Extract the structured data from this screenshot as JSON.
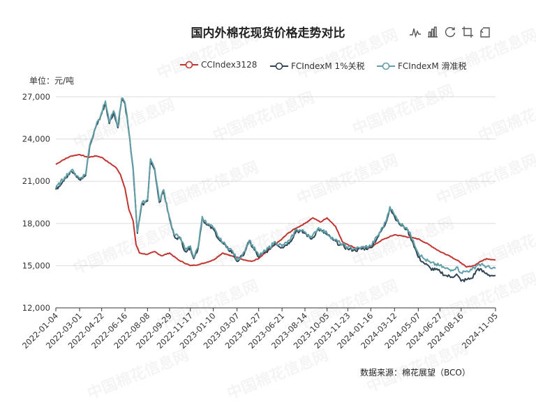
{
  "title": "国内外棉花现货价格走势对比",
  "unit_label": "单位：元/吨",
  "source": "数据来源：棉花展望（BCO）",
  "watermark": "中国棉花信息网",
  "toolbox": [
    "line-chart-icon",
    "bar-chart-icon",
    "restore-icon",
    "data-zoom-icon",
    "back-icon"
  ],
  "colors": {
    "cc": "#c23531",
    "m1": "#2f4554",
    "mv": "#61a0a8",
    "grid": "#dddddd",
    "axis": "#333333"
  },
  "chart_data": {
    "type": "line",
    "title": "国内外棉花现货价格走势对比",
    "ylabel": "单位：元/吨",
    "ylim": [
      12000,
      27000
    ],
    "yticks": [
      "12,000",
      "15,000",
      "18,000",
      "21,000",
      "24,000",
      "27,000"
    ],
    "ytick_values": [
      12000,
      15000,
      18000,
      21000,
      24000,
      27000
    ],
    "xlim": [
      "2022-01-04",
      "2024-11-05"
    ],
    "xticks": [
      "2022-01-04",
      "2022-03-01",
      "2022-04-22",
      "2022-06-16",
      "2022-08-08",
      "2022-09-29",
      "2022-11-17",
      "2023-01-10",
      "2023-03-07",
      "2023-04-27",
      "2023-06-21",
      "2023-08-14",
      "2023-10-05",
      "2023-11-23",
      "2024-01-16",
      "2024-03-12",
      "2024-05-07",
      "2024-06-27",
      "2024-08-16",
      "2024-11-05"
    ],
    "grid": true,
    "legend_position": "top-right",
    "series": [
      {
        "name": "CCIndex3128",
        "color": "#c23531",
        "points": [
          [
            "2022-01-04",
            22200
          ],
          [
            "2022-01-20",
            22500
          ],
          [
            "2022-02-10",
            22800
          ],
          [
            "2022-03-01",
            22900
          ],
          [
            "2022-03-20",
            22700
          ],
          [
            "2022-04-10",
            22800
          ],
          [
            "2022-04-22",
            22700
          ],
          [
            "2022-05-10",
            22300
          ],
          [
            "2022-05-25",
            22000
          ],
          [
            "2022-06-05",
            21500
          ],
          [
            "2022-06-16",
            20500
          ],
          [
            "2022-06-25",
            19000
          ],
          [
            "2022-07-05",
            18200
          ],
          [
            "2022-07-12",
            16500
          ],
          [
            "2022-07-20",
            15900
          ],
          [
            "2022-08-08",
            15800
          ],
          [
            "2022-08-25",
            16000
          ],
          [
            "2022-09-10",
            15700
          ],
          [
            "2022-09-29",
            15900
          ],
          [
            "2022-10-20",
            15400
          ],
          [
            "2022-11-17",
            15000
          ],
          [
            "2022-12-10",
            15100
          ],
          [
            "2023-01-10",
            15400
          ],
          [
            "2023-02-01",
            15900
          ],
          [
            "2023-02-20",
            15700
          ],
          [
            "2023-03-07",
            15600
          ],
          [
            "2023-03-25",
            15400
          ],
          [
            "2023-04-10",
            15300
          ],
          [
            "2023-04-27",
            15500
          ],
          [
            "2023-05-20",
            16100
          ],
          [
            "2023-06-21",
            16900
          ],
          [
            "2023-07-05",
            17300
          ],
          [
            "2023-07-20",
            17600
          ],
          [
            "2023-08-14",
            18000
          ],
          [
            "2023-09-01",
            18400
          ],
          [
            "2023-09-20",
            18100
          ],
          [
            "2023-10-05",
            18400
          ],
          [
            "2023-10-25",
            17800
          ],
          [
            "2023-11-10",
            16700
          ],
          [
            "2023-11-23",
            16500
          ],
          [
            "2023-12-15",
            16200
          ],
          [
            "2024-01-16",
            16300
          ],
          [
            "2024-02-10",
            16800
          ],
          [
            "2024-03-12",
            17200
          ],
          [
            "2024-04-01",
            17100
          ],
          [
            "2024-04-20",
            17000
          ],
          [
            "2024-05-07",
            16900
          ],
          [
            "2024-06-01",
            16500
          ],
          [
            "2024-06-27",
            16000
          ],
          [
            "2024-07-20",
            15700
          ],
          [
            "2024-08-16",
            15200
          ],
          [
            "2024-08-28",
            14900
          ],
          [
            "2024-09-15",
            15000
          ],
          [
            "2024-10-01",
            15300
          ],
          [
            "2024-10-15",
            15500
          ],
          [
            "2024-11-05",
            15400
          ]
        ]
      },
      {
        "name": "FCIndexM 1%关税",
        "color": "#2f4554",
        "points": [
          [
            "2022-01-04",
            20400
          ],
          [
            "2022-01-25",
            21200
          ],
          [
            "2022-02-10",
            21700
          ],
          [
            "2022-03-01",
            21100
          ],
          [
            "2022-03-15",
            21400
          ],
          [
            "2022-03-25",
            23500
          ],
          [
            "2022-04-10",
            25000
          ],
          [
            "2022-04-22",
            25800
          ],
          [
            "2022-05-01",
            26600
          ],
          [
            "2022-05-10",
            25100
          ],
          [
            "2022-05-20",
            25900
          ],
          [
            "2022-05-30",
            24800
          ],
          [
            "2022-06-08",
            26800
          ],
          [
            "2022-06-16",
            26500
          ],
          [
            "2022-06-25",
            24500
          ],
          [
            "2022-07-05",
            21900
          ],
          [
            "2022-07-15",
            17300
          ],
          [
            "2022-07-25",
            19300
          ],
          [
            "2022-08-08",
            19600
          ],
          [
            "2022-08-15",
            22500
          ],
          [
            "2022-08-25",
            21800
          ],
          [
            "2022-09-05",
            19500
          ],
          [
            "2022-09-15",
            20300
          ],
          [
            "2022-09-29",
            18300
          ],
          [
            "2022-10-10",
            17100
          ],
          [
            "2022-10-25",
            16900
          ],
          [
            "2022-11-05",
            16000
          ],
          [
            "2022-11-17",
            16300
          ],
          [
            "2022-11-25",
            15500
          ],
          [
            "2022-12-05",
            16200
          ],
          [
            "2022-12-15",
            18400
          ],
          [
            "2022-12-25",
            17900
          ],
          [
            "2023-01-10",
            17600
          ],
          [
            "2023-01-25",
            16800
          ],
          [
            "2023-02-10",
            16300
          ],
          [
            "2023-02-25",
            15900
          ],
          [
            "2023-03-07",
            15300
          ],
          [
            "2023-03-20",
            15700
          ],
          [
            "2023-04-05",
            16700
          ],
          [
            "2023-04-27",
            15600
          ],
          [
            "2023-05-15",
            16000
          ],
          [
            "2023-06-05",
            16600
          ],
          [
            "2023-06-21",
            16300
          ],
          [
            "2023-07-10",
            16700
          ],
          [
            "2023-07-25",
            17500
          ],
          [
            "2023-08-14",
            17300
          ],
          [
            "2023-08-30",
            16900
          ],
          [
            "2023-09-15",
            17600
          ],
          [
            "2023-10-05",
            17200
          ],
          [
            "2023-10-20",
            16800
          ],
          [
            "2023-11-05",
            16500
          ],
          [
            "2023-11-23",
            16200
          ],
          [
            "2023-12-10",
            16100
          ],
          [
            "2024-01-16",
            16300
          ],
          [
            "2024-02-01",
            17000
          ],
          [
            "2024-02-20",
            18000
          ],
          [
            "2024-03-01",
            19100
          ],
          [
            "2024-03-12",
            18500
          ],
          [
            "2024-03-25",
            17900
          ],
          [
            "2024-04-10",
            17600
          ],
          [
            "2024-04-25",
            16600
          ],
          [
            "2024-05-07",
            15600
          ],
          [
            "2024-05-20",
            15200
          ],
          [
            "2024-06-05",
            14800
          ],
          [
            "2024-06-27",
            14600
          ],
          [
            "2024-07-10",
            14300
          ],
          [
            "2024-07-25",
            14200
          ],
          [
            "2024-08-05",
            14400
          ],
          [
            "2024-08-16",
            13900
          ],
          [
            "2024-08-28",
            14000
          ],
          [
            "2024-09-10",
            14100
          ],
          [
            "2024-09-25",
            14800
          ],
          [
            "2024-10-10",
            14500
          ],
          [
            "2024-10-25",
            14300
          ],
          [
            "2024-11-05",
            14300
          ]
        ]
      },
      {
        "name": "FCIndexM 滑准税",
        "color": "#61a0a8",
        "points": [
          [
            "2022-01-04",
            20500
          ],
          [
            "2022-01-25",
            21300
          ],
          [
            "2022-02-10",
            21800
          ],
          [
            "2022-03-01",
            21200
          ],
          [
            "2022-03-15",
            21500
          ],
          [
            "2022-03-25",
            23600
          ],
          [
            "2022-04-10",
            25100
          ],
          [
            "2022-04-22",
            25900
          ],
          [
            "2022-05-01",
            26700
          ],
          [
            "2022-05-10",
            25200
          ],
          [
            "2022-05-20",
            26000
          ],
          [
            "2022-05-30",
            24900
          ],
          [
            "2022-06-08",
            26900
          ],
          [
            "2022-06-16",
            26600
          ],
          [
            "2022-06-25",
            24600
          ],
          [
            "2022-07-05",
            22000
          ],
          [
            "2022-07-15",
            17400
          ],
          [
            "2022-07-25",
            19400
          ],
          [
            "2022-08-08",
            19700
          ],
          [
            "2022-08-15",
            22600
          ],
          [
            "2022-08-25",
            21900
          ],
          [
            "2022-09-05",
            19600
          ],
          [
            "2022-09-15",
            20400
          ],
          [
            "2022-09-29",
            18400
          ],
          [
            "2022-10-10",
            17200
          ],
          [
            "2022-10-25",
            17000
          ],
          [
            "2022-11-05",
            16100
          ],
          [
            "2022-11-17",
            16400
          ],
          [
            "2022-11-25",
            15600
          ],
          [
            "2022-12-05",
            16300
          ],
          [
            "2022-12-15",
            18500
          ],
          [
            "2022-12-25",
            18000
          ],
          [
            "2023-01-10",
            17700
          ],
          [
            "2023-01-25",
            16900
          ],
          [
            "2023-02-10",
            16400
          ],
          [
            "2023-02-25",
            16000
          ],
          [
            "2023-03-07",
            15400
          ],
          [
            "2023-03-20",
            15800
          ],
          [
            "2023-04-05",
            16800
          ],
          [
            "2023-04-27",
            15700
          ],
          [
            "2023-05-15",
            16100
          ],
          [
            "2023-06-05",
            16700
          ],
          [
            "2023-06-21",
            16400
          ],
          [
            "2023-07-10",
            16800
          ],
          [
            "2023-07-25",
            17600
          ],
          [
            "2023-08-14",
            17400
          ],
          [
            "2023-08-30",
            17000
          ],
          [
            "2023-09-15",
            17700
          ],
          [
            "2023-10-05",
            17300
          ],
          [
            "2023-10-20",
            16900
          ],
          [
            "2023-11-05",
            16600
          ],
          [
            "2023-11-23",
            16300
          ],
          [
            "2023-12-10",
            16200
          ],
          [
            "2024-01-16",
            16400
          ],
          [
            "2024-02-01",
            17100
          ],
          [
            "2024-02-20",
            18100
          ],
          [
            "2024-03-01",
            19200
          ],
          [
            "2024-03-12",
            18600
          ],
          [
            "2024-03-25",
            18000
          ],
          [
            "2024-04-10",
            17700
          ],
          [
            "2024-04-25",
            16800
          ],
          [
            "2024-05-07",
            15900
          ],
          [
            "2024-05-20",
            15500
          ],
          [
            "2024-06-05",
            15200
          ],
          [
            "2024-06-27",
            15000
          ],
          [
            "2024-07-10",
            14800
          ],
          [
            "2024-07-25",
            14700
          ],
          [
            "2024-08-05",
            14900
          ],
          [
            "2024-08-16",
            14500
          ],
          [
            "2024-08-28",
            14600
          ],
          [
            "2024-09-10",
            14700
          ],
          [
            "2024-09-25",
            15100
          ],
          [
            "2024-10-10",
            15000
          ],
          [
            "2024-10-25",
            14800
          ],
          [
            "2024-11-05",
            14800
          ]
        ]
      }
    ]
  }
}
